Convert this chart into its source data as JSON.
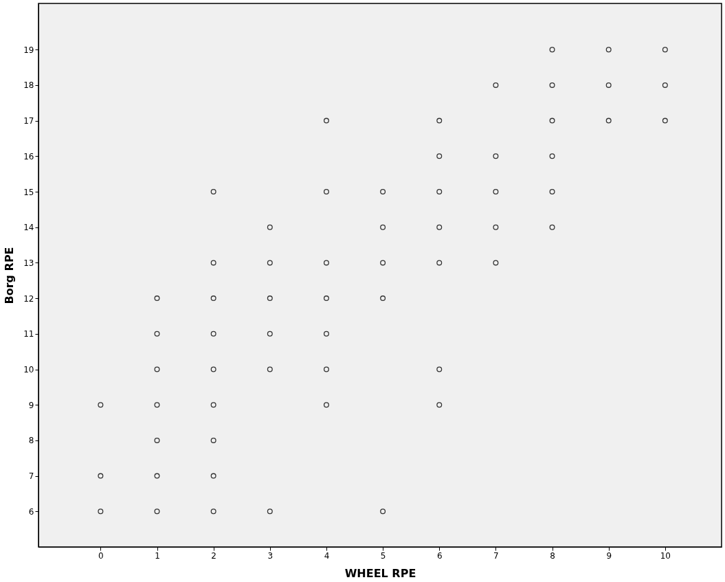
{
  "chart_data": {
    "type": "scatter",
    "xlabel": "WHEEL RPE",
    "ylabel": "Borg RPE",
    "xlim": [
      -1.1,
      11
    ],
    "ylim": [
      5,
      20.3
    ],
    "xticks": [
      0,
      1,
      2,
      3,
      4,
      5,
      6,
      7,
      8,
      9,
      10
    ],
    "yticks": [
      6,
      7,
      8,
      9,
      10,
      11,
      12,
      13,
      14,
      15,
      16,
      17,
      18,
      19
    ],
    "grid": false,
    "legend": false,
    "marker": "circle",
    "series": [
      {
        "color": "#333333",
        "x": [
          0,
          0,
          0,
          1,
          1,
          1,
          1,
          1,
          1,
          1,
          2,
          2,
          2,
          2,
          2,
          2,
          2,
          2,
          2,
          3,
          3,
          3,
          3,
          3,
          3,
          4,
          4,
          4,
          4,
          4,
          4,
          4,
          5,
          5,
          5,
          5,
          5,
          6,
          6,
          6,
          6,
          6,
          6,
          6,
          7,
          7,
          7,
          7,
          7,
          8,
          8,
          8,
          8,
          8,
          8,
          9,
          9,
          9,
          10,
          10,
          10
        ],
        "values": [
          9,
          7,
          6,
          12,
          11,
          10,
          9,
          8,
          7,
          6,
          15,
          13,
          12,
          11,
          10,
          9,
          8,
          7,
          6,
          14,
          13,
          12,
          11,
          10,
          6,
          17,
          15,
          13,
          12,
          11,
          10,
          9,
          15,
          14,
          13,
          12,
          6,
          17,
          16,
          15,
          14,
          13,
          10,
          9,
          18,
          16,
          15,
          14,
          13,
          19,
          18,
          17,
          16,
          15,
          14,
          19,
          18,
          17,
          19,
          18,
          17
        ]
      }
    ]
  }
}
